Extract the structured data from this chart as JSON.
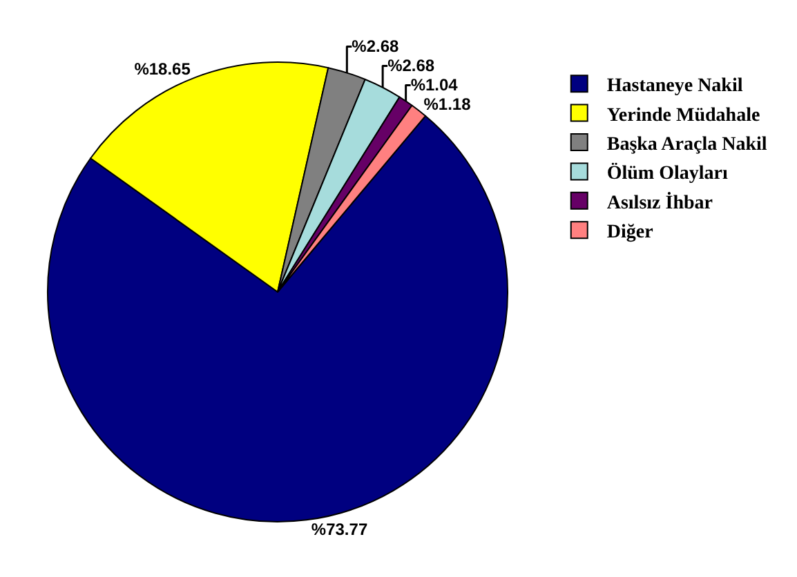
{
  "chart_data": {
    "type": "pie",
    "categories": [
      "Hastaneye Nakil",
      "Yerinde Müdahale",
      "Başka Araçla Nakil",
      "Ölüm Olayları",
      "Asılsız İhbar",
      "Diğer"
    ],
    "values": [
      73.77,
      18.65,
      2.68,
      2.68,
      1.04,
      1.18
    ],
    "value_labels": [
      "%73.77",
      "%18.65",
      "%2.68",
      "%2.68",
      "%1.04",
      "%1.18"
    ],
    "colors": [
      "#000080",
      "#ffff00",
      "#808080",
      "#a6dcdc",
      "#660066",
      "#ff8080"
    ],
    "legend": "right"
  }
}
